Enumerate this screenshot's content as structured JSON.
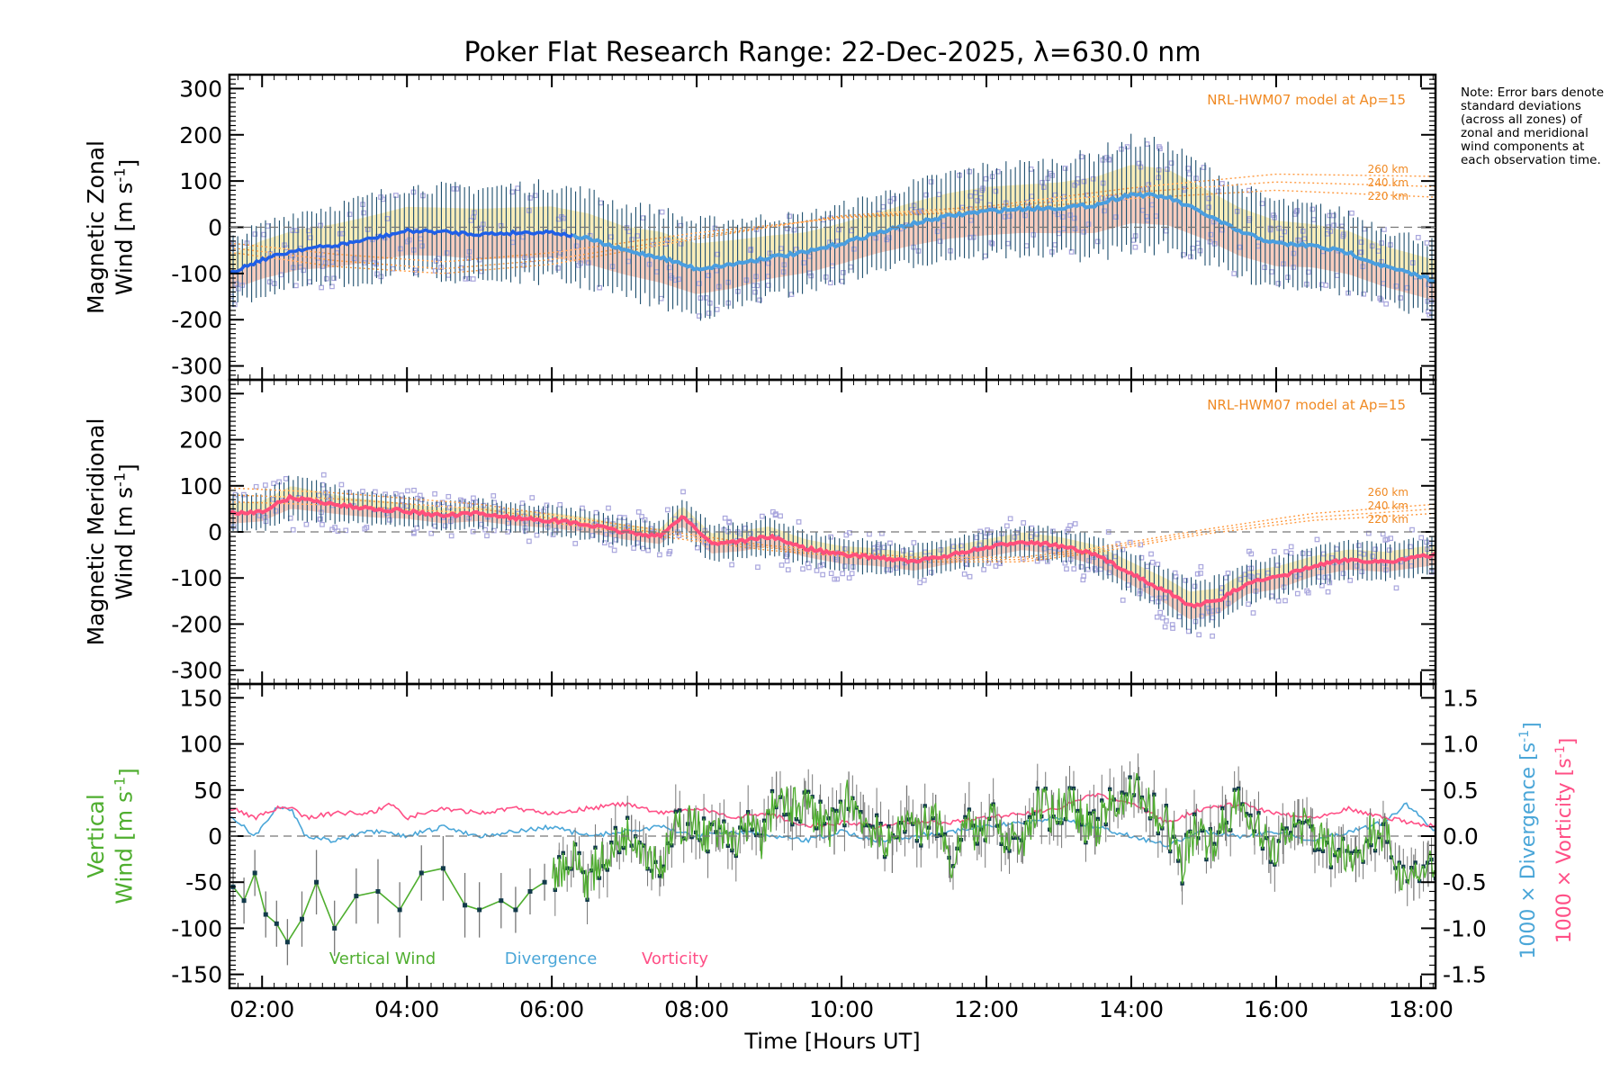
{
  "title": "Poker Flat Research Range: 22-Dec-2025, λ=630.0 nm",
  "note": "Note: Error bars denote standard deviations (across all zones) of zonal and meridional wind components at each observation time.",
  "x_axis": {
    "label": "Time [Hours UT]",
    "range_hours": [
      1.55,
      18.2
    ],
    "ticks": [
      2,
      4,
      6,
      8,
      10,
      12,
      14,
      16,
      18
    ],
    "tick_labels": [
      "02:00",
      "04:00",
      "06:00",
      "08:00",
      "10:00",
      "12:00",
      "14:00",
      "16:00",
      "18:00"
    ]
  },
  "colors": {
    "zonal_line": "#4a9ee0",
    "zonal_line_early": "#1f5fe8",
    "meridional_line": "#ff4f7b",
    "errorbar": "#1e4f6e",
    "scatter": "#a9a6dd",
    "model_line": "#ff9a40",
    "model_label": "#f08a24",
    "shade_yellow": "#f7e7a3",
    "shade_salmon": "#f4b8a4",
    "vertical": "#4fae2f",
    "divergence": "#4aa6d8",
    "vorticity": "#ff4f86"
  },
  "chart_data": [
    {
      "type": "line",
      "panel": "zonal",
      "ylabel_line1": "Magnetic Zonal",
      "ylabel_line2": "Wind [m s",
      "ylabel_sup": "-1",
      "ylabel_end": "]",
      "ylim": [
        -330,
        330
      ],
      "yticks": [
        300,
        200,
        100,
        0,
        -100,
        -200,
        -300
      ],
      "model_label": "NRL-HWM07 model at Ap=15",
      "altitude_labels": [
        "260 km",
        "240 km",
        "220 km"
      ],
      "series": [
        {
          "name": "Zonal wind",
          "x": [
            1.6,
            2.0,
            2.5,
            3.0,
            3.5,
            4.0,
            4.5,
            5.0,
            5.5,
            6.0,
            6.5,
            7.0,
            7.5,
            8.0,
            8.5,
            9.0,
            9.5,
            10.0,
            10.5,
            11.0,
            11.5,
            12.0,
            12.5,
            13.0,
            13.5,
            14.0,
            14.5,
            15.0,
            15.5,
            16.0,
            16.5,
            17.0,
            17.5,
            18.2
          ],
          "y": [
            -95,
            -70,
            -48,
            -40,
            -25,
            -8,
            -10,
            -15,
            -12,
            -10,
            -25,
            -50,
            -65,
            -90,
            -80,
            -65,
            -55,
            -35,
            -12,
            8,
            25,
            35,
            40,
            42,
            48,
            72,
            65,
            30,
            -10,
            -35,
            -40,
            -55,
            -85,
            -115
          ],
          "sigma": [
            70,
            75,
            80,
            85,
            90,
            95,
            95,
            100,
            100,
            100,
            100,
            95,
            100,
            100,
            95,
            85,
            80,
            80,
            80,
            85,
            90,
            95,
            95,
            100,
            110,
            115,
            110,
            100,
            95,
            90,
            85,
            85,
            80,
            80
          ]
        },
        {
          "name": "HWM 260 km",
          "x": [
            1.6,
            3.0,
            4.5,
            6.0,
            8.0,
            10.0,
            12.0,
            14.0,
            16.0,
            18.2
          ],
          "y": [
            -55,
            -85,
            -100,
            -80,
            -25,
            25,
            45,
            85,
            115,
            110
          ]
        },
        {
          "name": "HWM 240 km",
          "x": [
            1.6,
            3.0,
            4.5,
            6.0,
            8.0,
            10.0,
            12.0,
            14.0,
            16.0,
            18.2
          ],
          "y": [
            -45,
            -72,
            -90,
            -70,
            -20,
            22,
            40,
            75,
            98,
            88
          ]
        },
        {
          "name": "HWM 220 km",
          "x": [
            1.6,
            3.0,
            4.5,
            6.0,
            8.0,
            10.0,
            12.0,
            14.0,
            16.0,
            18.2
          ],
          "y": [
            -35,
            -58,
            -75,
            -55,
            -12,
            20,
            35,
            62,
            80,
            65
          ]
        }
      ]
    },
    {
      "type": "line",
      "panel": "meridional",
      "ylabel_line1": "Magnetic Meridional",
      "ylabel_line2": "Wind [m s",
      "ylabel_sup": "-1",
      "ylabel_end": "]",
      "ylim": [
        -330,
        330
      ],
      "yticks": [
        300,
        200,
        100,
        0,
        -100,
        -200,
        -300
      ],
      "model_label": "NRL-HWM07 model at Ap=15",
      "altitude_labels": [
        "260 km",
        "240 km",
        "220 km"
      ],
      "series": [
        {
          "name": "Meridional wind",
          "x": [
            1.6,
            2.0,
            2.4,
            2.8,
            3.2,
            3.6,
            4.0,
            4.5,
            5.0,
            5.5,
            6.0,
            6.5,
            7.0,
            7.5,
            7.8,
            8.2,
            8.6,
            9.0,
            9.5,
            10.0,
            10.5,
            11.0,
            11.5,
            12.0,
            12.5,
            13.0,
            13.5,
            14.0,
            14.5,
            14.8,
            15.2,
            15.6,
            16.0,
            16.5,
            17.0,
            17.5,
            18.2
          ],
          "y": [
            40,
            45,
            75,
            65,
            55,
            50,
            45,
            35,
            40,
            30,
            25,
            15,
            0,
            -10,
            35,
            -25,
            -20,
            -10,
            -35,
            -50,
            -55,
            -65,
            -50,
            -35,
            -20,
            -30,
            -50,
            -90,
            -130,
            -160,
            -150,
            -110,
            -100,
            -75,
            -60,
            -65,
            -50
          ],
          "sigma": [
            40,
            40,
            45,
            40,
            35,
            35,
            30,
            30,
            30,
            30,
            30,
            30,
            30,
            30,
            40,
            40,
            40,
            40,
            35,
            35,
            35,
            35,
            35,
            35,
            35,
            35,
            40,
            45,
            50,
            55,
            50,
            45,
            45,
            40,
            40,
            40,
            40
          ]
        },
        {
          "name": "HWM 260 km",
          "x": [
            1.6,
            3.0,
            5.0,
            7.0,
            9.0,
            11.0,
            12.5,
            13.5,
            15.0,
            16.5,
            18.2
          ],
          "y": [
            95,
            85,
            60,
            15,
            -30,
            -55,
            -55,
            -35,
            5,
            40,
            60
          ]
        },
        {
          "name": "HWM 240 km",
          "x": [
            1.6,
            3.0,
            5.0,
            7.0,
            9.0,
            11.0,
            12.5,
            13.5,
            15.0,
            16.5,
            18.2
          ],
          "y": [
            80,
            72,
            50,
            8,
            -35,
            -60,
            -60,
            -40,
            0,
            32,
            50
          ]
        },
        {
          "name": "HWM 220 km",
          "x": [
            1.6,
            3.0,
            5.0,
            7.0,
            9.0,
            11.0,
            12.5,
            13.5,
            15.0,
            16.5,
            18.2
          ],
          "y": [
            65,
            58,
            40,
            0,
            -40,
            -65,
            -65,
            -45,
            -5,
            25,
            40
          ]
        }
      ]
    },
    {
      "type": "line",
      "panel": "vertical",
      "ylabel_line1": "Vertical",
      "ylabel_line2": "Wind [m s",
      "ylabel_sup": "-1",
      "ylabel_end": "]",
      "ylim": [
        -165,
        165
      ],
      "yticks": [
        150,
        100,
        50,
        0,
        -50,
        -100,
        -150
      ],
      "y2_ticks": [
        1.5,
        1.0,
        0.5,
        0.0,
        -0.5,
        -1.0,
        -1.5
      ],
      "y2_label_div": "1000 × Divergence [s",
      "y2_label_vort": "1000 × Vorticity [s",
      "y2_sup": "-1",
      "y2_end": "]",
      "legend": [
        "Vertical Wind",
        "Divergence",
        "Vorticity"
      ],
      "series": [
        {
          "name": "Vertical Wind",
          "x": [
            1.6,
            1.75,
            1.9,
            2.05,
            2.2,
            2.35,
            2.55,
            2.75,
            3.0,
            3.3,
            3.6,
            3.9,
            4.2,
            4.5,
            4.8,
            5.0,
            5.3,
            5.5,
            5.7,
            5.9,
            6.1,
            6.3,
            6.5,
            6.7,
            6.9,
            7.1,
            7.3,
            7.5,
            7.7,
            7.9,
            8.1,
            8.3,
            8.5,
            8.7,
            8.9,
            9.1,
            9.3,
            9.5,
            9.7,
            9.9,
            10.1,
            10.3,
            10.5,
            10.7,
            10.9,
            11.1,
            11.3,
            11.5,
            11.7,
            11.9,
            12.1,
            12.3,
            12.5,
            12.7,
            12.9,
            13.1,
            13.3,
            13.5,
            13.7,
            13.9,
            14.1,
            14.3,
            14.5,
            14.7,
            14.9,
            15.1,
            15.3,
            15.5,
            15.7,
            15.9,
            16.1,
            16.3,
            16.5,
            16.7,
            16.9,
            17.1,
            17.3,
            17.5,
            17.7,
            17.9,
            18.1
          ],
          "y": [
            -55,
            -70,
            -40,
            -85,
            -95,
            -115,
            -90,
            -50,
            -100,
            -65,
            -60,
            -80,
            -40,
            -35,
            -75,
            -80,
            -70,
            -80,
            -60,
            -50,
            -35,
            -25,
            -50,
            -20,
            -10,
            5,
            -15,
            -35,
            10,
            15,
            5,
            0,
            -5,
            10,
            -5,
            40,
            30,
            35,
            20,
            5,
            45,
            20,
            0,
            -15,
            30,
            10,
            20,
            -30,
            15,
            0,
            20,
            -5,
            -10,
            35,
            25,
            40,
            20,
            5,
            30,
            45,
            50,
            25,
            10,
            -30,
            10,
            -10,
            20,
            35,
            15,
            -15,
            -5,
            15,
            5,
            -10,
            -15,
            -25,
            5,
            0,
            -35,
            -45,
            -30
          ],
          "sigma": [
            20,
            25,
            25,
            25,
            25,
            25,
            30,
            35,
            30,
            30,
            35,
            30,
            30,
            35,
            35,
            30,
            30,
            25,
            25,
            20,
            20,
            20,
            20,
            18,
            18,
            18,
            18,
            20,
            20,
            18,
            15,
            15,
            15,
            15,
            15,
            30,
            25,
            25,
            25,
            25,
            25,
            25,
            25,
            25,
            25,
            25,
            25,
            20,
            20,
            20,
            20,
            20,
            20,
            25,
            25,
            25,
            25,
            25,
            25,
            25,
            25,
            25,
            25,
            30,
            25,
            25,
            25,
            25,
            25,
            25,
            25,
            25,
            25,
            25,
            25,
            25,
            25,
            25,
            25,
            25,
            25
          ]
        },
        {
          "name": "Divergence",
          "x": [
            1.6,
            1.9,
            2.2,
            2.4,
            2.6,
            3.0,
            3.5,
            4.0,
            4.5,
            5.0,
            5.5,
            6.0,
            6.5,
            7.0,
            7.5,
            8.0,
            8.5,
            9.0,
            9.5,
            10.0,
            10.5,
            11.0,
            11.5,
            12.0,
            12.5,
            13.0,
            13.5,
            14.0,
            14.5,
            15.0,
            15.5,
            16.0,
            16.5,
            17.0,
            17.5,
            17.8,
            18.2
          ],
          "y": [
            0.2,
            0.0,
            0.3,
            0.3,
            0.0,
            -0.05,
            0.05,
            0.0,
            0.1,
            0.0,
            0.05,
            0.1,
            0.0,
            0.05,
            0.1,
            0.0,
            0.05,
            0.0,
            -0.05,
            0.05,
            -0.05,
            0.0,
            0.05,
            0.1,
            0.15,
            0.2,
            0.1,
            0.0,
            -0.1,
            0.05,
            0.0,
            0.05,
            -0.05,
            0.05,
            0.15,
            0.35,
            0.05
          ]
        },
        {
          "name": "Vorticity",
          "x": [
            1.6,
            1.9,
            2.2,
            2.4,
            2.6,
            3.0,
            3.5,
            3.8,
            4.0,
            4.5,
            5.0,
            5.5,
            6.0,
            6.5,
            7.0,
            7.5,
            8.0,
            8.5,
            9.0,
            9.5,
            10.0,
            10.5,
            11.0,
            11.5,
            12.0,
            12.5,
            13.0,
            13.5,
            14.0,
            14.5,
            15.0,
            15.5,
            16.0,
            16.5,
            17.0,
            17.5,
            18.2
          ],
          "y": [
            0.3,
            0.2,
            0.3,
            0.3,
            0.2,
            0.25,
            0.25,
            0.35,
            0.2,
            0.3,
            0.25,
            0.3,
            0.25,
            0.3,
            0.35,
            0.25,
            0.3,
            0.2,
            0.25,
            0.1,
            0.15,
            0.1,
            0.15,
            0.15,
            0.2,
            0.25,
            0.3,
            0.45,
            0.35,
            0.15,
            0.3,
            0.35,
            0.25,
            0.2,
            0.3,
            0.2,
            0.1
          ]
        }
      ]
    }
  ]
}
